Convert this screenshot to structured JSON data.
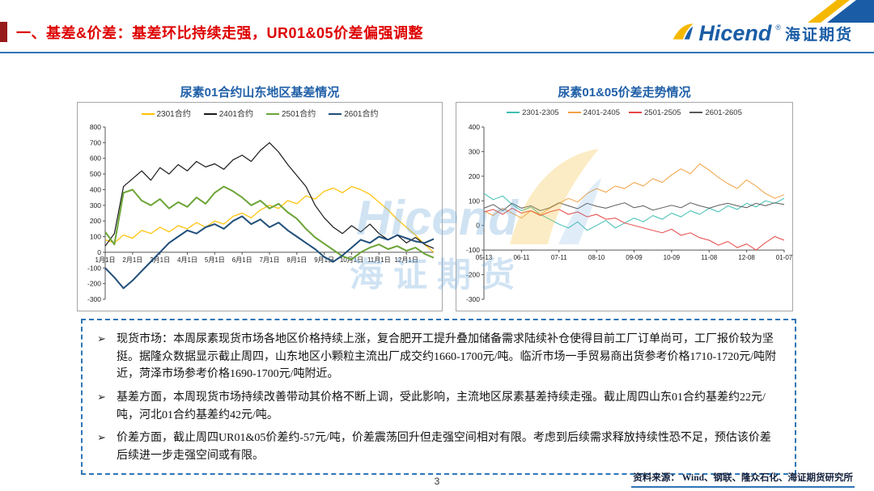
{
  "header": {
    "title": "一、基差&价差：基差环比持续走强，UR01&05价差偏强调整",
    "logo": {
      "brand": "Hicend",
      "registered": "®",
      "company": "海证期货"
    }
  },
  "watermark": {
    "brand": "Hicend",
    "company": "海证期货"
  },
  "chart_data": [
    {
      "type": "line",
      "title": "尿素01合约山东地区基差情况",
      "xlabel": "",
      "ylabel": "",
      "x_tick_labels": [
        "1月1日",
        "2月1日",
        "3月1日",
        "4月1日",
        "5月1日",
        "6月1日",
        "7月1日",
        "8月1日",
        "9月1日",
        "10月1日",
        "11月1日",
        "12月1日"
      ],
      "x_divisions": 12,
      "ylim": [
        -300,
        800
      ],
      "y_ticks": [
        800,
        700,
        600,
        500,
        400,
        300,
        200,
        100,
        0,
        -100,
        -200,
        -300
      ],
      "x_axis_at": 0,
      "grid": false,
      "legend_position": "top",
      "series": [
        {
          "name": "2301合约",
          "color": "#FFC000",
          "line_width": 1.2,
          "values": [
            80,
            60,
            110,
            90,
            140,
            120,
            160,
            130,
            170,
            150,
            190,
            160,
            200,
            180,
            230,
            250,
            220,
            270,
            300,
            280,
            330,
            310,
            360,
            340,
            390,
            410,
            380,
            420,
            400,
            370,
            320,
            270,
            210,
            160,
            110,
            50,
            0
          ]
        },
        {
          "name": "2401合约",
          "color": "#1A1A1A",
          "line_width": 1.2,
          "values": [
            40,
            120,
            420,
            470,
            520,
            460,
            540,
            500,
            560,
            520,
            580,
            545,
            565,
            530,
            590,
            620,
            580,
            650,
            700,
            640,
            560,
            490,
            420,
            300,
            220,
            160,
            120,
            170,
            130,
            180,
            120,
            80,
            110,
            60,
            95,
            50,
            25
          ]
        },
        {
          "name": "2501合约",
          "color": "#6CA437",
          "line_width": 2,
          "values": [
            130,
            50,
            380,
            400,
            330,
            300,
            340,
            280,
            320,
            290,
            350,
            310,
            380,
            420,
            390,
            350,
            300,
            330,
            280,
            310,
            255,
            215,
            150,
            95,
            55,
            15,
            -25,
            -45,
            0,
            30,
            50,
            20,
            40,
            10,
            30,
            -10,
            -35
          ]
        },
        {
          "name": "2601合约",
          "color": "#1F4E79",
          "line_width": 2,
          "values": [
            -100,
            -160,
            -230,
            -180,
            -120,
            -60,
            0,
            60,
            100,
            140,
            120,
            160,
            180,
            150,
            200,
            230,
            180,
            210,
            160,
            190,
            140,
            100,
            60,
            20,
            -30,
            -60,
            -20,
            30,
            80,
            60,
            100,
            80,
            110,
            90,
            70,
            60,
            85
          ]
        }
      ]
    },
    {
      "type": "line",
      "title": "尿素01&05价差走势情况",
      "xlabel": "",
      "ylabel": "",
      "x_tick_labels": [
        "05-13",
        "06-11",
        "07-11",
        "08-10",
        "09-09",
        "10-09",
        "11-08",
        "12-08",
        "01-07"
      ],
      "x_divisions": 8,
      "ylim": [
        -300,
        400
      ],
      "y_ticks": [
        400,
        300,
        200,
        100,
        0,
        -100,
        -200,
        -300
      ],
      "x_axis_at": -100,
      "grid": false,
      "legend_position": "top",
      "series": [
        {
          "name": "2301-2305",
          "color": "#3FBFB2",
          "line_width": 1,
          "values": [
            130,
            105,
            120,
            85,
            60,
            75,
            45,
            25,
            5,
            -10,
            15,
            -20,
            0,
            20,
            -10,
            10,
            30,
            15,
            40,
            25,
            50,
            35,
            60,
            45,
            70,
            55,
            80,
            65,
            90,
            75,
            100,
            90,
            110
          ]
        },
        {
          "name": "2401-2405",
          "color": "#F2A243",
          "line_width": 1,
          "values": [
            60,
            40,
            70,
            50,
            30,
            60,
            45,
            70,
            90,
            110,
            95,
            130,
            150,
            135,
            160,
            150,
            175,
            160,
            190,
            175,
            205,
            230,
            210,
            250,
            225,
            195,
            170,
            150,
            185,
            160,
            130,
            110,
            125
          ]
        },
        {
          "name": "2501-2505",
          "color": "#E54545",
          "line_width": 1,
          "values": [
            55,
            65,
            45,
            70,
            50,
            60,
            40,
            55,
            65,
            45,
            55,
            35,
            45,
            25,
            30,
            10,
            0,
            -10,
            -20,
            -30,
            -15,
            -40,
            -30,
            -50,
            -60,
            -80,
            -65,
            -90,
            -75,
            -100,
            -70,
            -45,
            -60
          ]
        },
        {
          "name": "2601-2605",
          "color": "#5A5A5A",
          "line_width": 1,
          "values": [
            70,
            85,
            60,
            90,
            70,
            80,
            60,
            72,
            92,
            80,
            68,
            90,
            78,
            70,
            82,
            92,
            72,
            80,
            62,
            72,
            82,
            72,
            92,
            80,
            70,
            82,
            90,
            80,
            72,
            90,
            80,
            92,
            85
          ]
        }
      ]
    }
  ],
  "commentary": {
    "bullet_marker": "➢",
    "bullets": [
      "现货市场：本周尿素现货市场各地区价格持续上涨，复合肥开工提升叠加储备需求陆续补仓使得目前工厂订单尚可，工厂报价较为坚挺。据隆众数据显示截止周四，山东地区小颗粒主流出厂成交约1660-1700元/吨。临沂市场一手贸易商出货参考价格1710-1720元/吨附近，菏泽市场参考价格1690-1700元/吨附近。",
      "基差方面，本周现货市场持续改善带动其价格不断上调，受此影响，主流地区尿素基差持续走强。截止周四山东01合约基差约22元/吨，河北01合约基差约42元/吨。",
      "价差方面，截止周四UR01&05价差约-57元/吨，价差震荡回升但走强空间相对有限。考虑到后续需求释放持续性恐不足，预估该价差后续进一步走强空间或有限。"
    ]
  },
  "footer": {
    "page_number": "3",
    "source": "资料来源：  Wind、钢联、隆众石化、海证期货研究所"
  },
  "colors": {
    "title_red": "#DE0000",
    "brand_blue": "#1A5DA6",
    "divider_blue": "#2E75B6",
    "watermark_blue": "#6FA9DC",
    "watermark_yellow": "#F5C242"
  }
}
